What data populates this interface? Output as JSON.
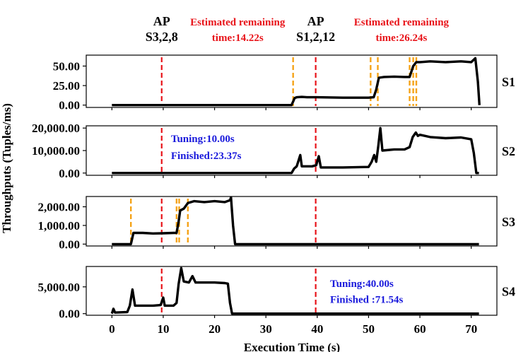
{
  "chart_data": {
    "type": "line",
    "xlabel": "Execution Time (s)",
    "ylabel": "Throughputs (Tuples/ms)",
    "xlim": [
      -5,
      75
    ],
    "x_ticks": [
      0,
      10,
      20,
      30,
      40,
      50,
      60,
      70
    ],
    "x_tick_labels": [
      "0",
      "10",
      "20",
      "30",
      "40",
      "50",
      "60",
      "70"
    ],
    "top_annotations": [
      {
        "text": "AP",
        "x": 9.7,
        "row": 1,
        "color": "#000000"
      },
      {
        "text": "S3,2,8",
        "x": 9.7,
        "row": 2,
        "color": "#000000"
      },
      {
        "text": "Estimated remaining",
        "x": 24.5,
        "row": 1,
        "color": "#e8141a"
      },
      {
        "text": "time:14.22s",
        "x": 24.5,
        "row": 2,
        "color": "#e8141a"
      },
      {
        "text": "AP",
        "x": 39.7,
        "row": 1,
        "color": "#000000"
      },
      {
        "text": "S1,2,12",
        "x": 39.7,
        "row": 2,
        "color": "#000000"
      },
      {
        "text": "Estimated remaining",
        "x": 56.4,
        "row": 1,
        "color": "#e8141a"
      },
      {
        "text": "time:26.24s",
        "x": 56.4,
        "row": 2,
        "color": "#e8141a"
      }
    ],
    "panels": [
      {
        "name": "S1",
        "ylim": [
          -3,
          64
        ],
        "y_ticks": [
          0,
          25,
          50
        ],
        "y_tick_labels": [
          "0.00",
          "25.00",
          "50.00"
        ],
        "red_lines": [
          9.7,
          39.7
        ],
        "orange_lines": [
          35.3,
          50.4,
          51.8,
          58.0,
          58.7,
          59.3
        ],
        "notes": [],
        "series": [
          [
            0,
            0
          ],
          [
            35,
            0
          ],
          [
            35.6,
            9
          ],
          [
            36,
            10
          ],
          [
            37,
            10.5
          ],
          [
            38,
            10
          ],
          [
            39,
            10
          ],
          [
            40,
            10
          ],
          [
            45,
            9.5
          ],
          [
            50,
            9.5
          ],
          [
            51,
            10
          ],
          [
            51.5,
            20
          ],
          [
            52,
            35
          ],
          [
            53,
            36
          ],
          [
            55,
            36.5
          ],
          [
            57,
            36
          ],
          [
            58,
            36
          ],
          [
            58.7,
            50
          ],
          [
            59.3,
            55
          ],
          [
            60,
            55
          ],
          [
            62,
            56
          ],
          [
            65,
            55
          ],
          [
            68,
            56
          ],
          [
            70,
            55
          ],
          [
            70.8,
            60
          ],
          [
            71.3,
            30
          ],
          [
            71.6,
            0
          ]
        ]
      },
      {
        "name": "S2",
        "ylim": [
          -1000,
          21000
        ],
        "y_ticks": [
          0,
          10000,
          20000
        ],
        "y_tick_labels": [
          "0.00",
          "10,000.00",
          "20,000.00"
        ],
        "red_lines": [
          9.7,
          39.7
        ],
        "orange_lines": [],
        "notes": [
          {
            "text": "Tuning:10.00s",
            "x": 11.5,
            "y": 13800
          },
          {
            "text": "Finished:23.37s",
            "x": 11.5,
            "y": 6200
          }
        ],
        "series": [
          [
            0,
            0
          ],
          [
            35,
            0
          ],
          [
            35.5,
            2000
          ],
          [
            36,
            3000
          ],
          [
            36.7,
            8000
          ],
          [
            37,
            3000
          ],
          [
            39,
            3000
          ],
          [
            39.8,
            3500
          ],
          [
            40.3,
            7500
          ],
          [
            40.7,
            2500
          ],
          [
            45,
            2500
          ],
          [
            50,
            2700
          ],
          [
            50.6,
            5000
          ],
          [
            51.1,
            8000
          ],
          [
            51.5,
            5000
          ],
          [
            51.9,
            12000
          ],
          [
            52.3,
            20000
          ],
          [
            52.7,
            10000
          ],
          [
            55,
            10500
          ],
          [
            57,
            10500
          ],
          [
            58,
            11500
          ],
          [
            58.6,
            16000
          ],
          [
            59.2,
            18000
          ],
          [
            59.6,
            16500
          ],
          [
            60,
            17000
          ],
          [
            62,
            16000
          ],
          [
            65,
            15500
          ],
          [
            68,
            15800
          ],
          [
            70,
            15000
          ],
          [
            70.5,
            9000
          ],
          [
            71,
            0
          ],
          [
            71.5,
            0
          ]
        ]
      },
      {
        "name": "S3",
        "ylim": [
          -100,
          2550
        ],
        "y_ticks": [
          0,
          1000,
          2000
        ],
        "y_tick_labels": [
          "0.00",
          "1,000.00",
          "2,000.00"
        ],
        "red_lines": [
          9.7,
          39.7
        ],
        "orange_lines": [
          3.7,
          12.6,
          13.1,
          14.8
        ],
        "notes": [],
        "series": [
          [
            0,
            0
          ],
          [
            3.7,
            0
          ],
          [
            4.2,
            600
          ],
          [
            6,
            600
          ],
          [
            8,
            570
          ],
          [
            10,
            580
          ],
          [
            12,
            600
          ],
          [
            12.6,
            600
          ],
          [
            13,
            1200
          ],
          [
            13.3,
            1800
          ],
          [
            14,
            1900
          ],
          [
            14.8,
            2200
          ],
          [
            16,
            2300
          ],
          [
            18,
            2250
          ],
          [
            20,
            2300
          ],
          [
            22,
            2250
          ],
          [
            23,
            2350
          ],
          [
            23.2,
            2500
          ],
          [
            23.6,
            1000
          ],
          [
            24,
            0
          ],
          [
            71.5,
            0
          ]
        ]
      },
      {
        "name": "S4",
        "ylim": [
          -300,
          8800
        ],
        "y_ticks": [
          0,
          5000
        ],
        "y_tick_labels": [
          "0.00",
          "5,000.00"
        ],
        "red_lines": [
          9.7,
          39.7
        ],
        "orange_lines": [],
        "notes": [
          {
            "text": "Tuning:40.00s",
            "x": 42.5,
            "y": 5000
          },
          {
            "text": "Finished :71.54s",
            "x": 42.5,
            "y": 2000
          }
        ],
        "series": [
          [
            0,
            0
          ],
          [
            0.3,
            900
          ],
          [
            0.6,
            200
          ],
          [
            3,
            300
          ],
          [
            3.5,
            1500
          ],
          [
            4,
            4500
          ],
          [
            4.5,
            1500
          ],
          [
            6,
            1500
          ],
          [
            8,
            1500
          ],
          [
            9.5,
            1600
          ],
          [
            10,
            3000
          ],
          [
            10.3,
            1500
          ],
          [
            12,
            1500
          ],
          [
            12.6,
            2000
          ],
          [
            13,
            5500
          ],
          [
            13.5,
            8500
          ],
          [
            14,
            6000
          ],
          [
            15,
            5800
          ],
          [
            15.7,
            7000
          ],
          [
            16.3,
            5800
          ],
          [
            18,
            5800
          ],
          [
            20,
            5800
          ],
          [
            22,
            5700
          ],
          [
            22.6,
            5600
          ],
          [
            23,
            2000
          ],
          [
            23.4,
            0
          ],
          [
            71.5,
            0
          ]
        ]
      }
    ]
  }
}
